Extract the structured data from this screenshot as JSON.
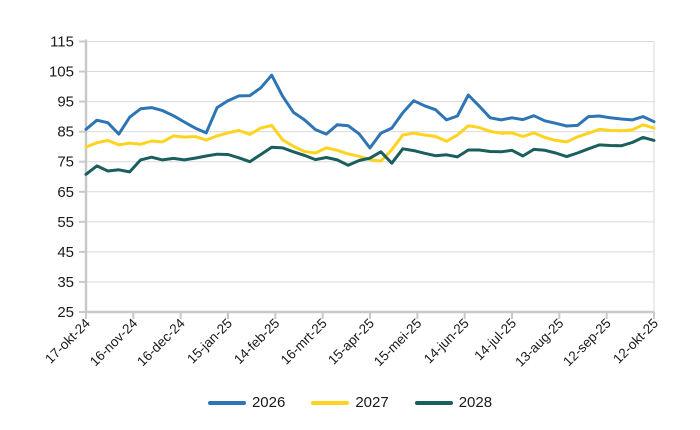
{
  "chart_data": {
    "type": "line",
    "title": "",
    "xlabel": "",
    "ylabel": "",
    "ylim": [
      25,
      115
    ],
    "y_ticks": [
      25,
      35,
      45,
      55,
      65,
      75,
      85,
      95,
      105,
      115
    ],
    "x_tick_labels": [
      "17-okt-24",
      "16-nov-24",
      "16-dec-24",
      "15-jan-25",
      "14-feb-25",
      "16-mrt-25",
      "15-apr-25",
      "15-mei-25",
      "14-jun-25",
      "14-jul-25",
      "13-aug-25",
      "12-sep-25",
      "12-okt-25"
    ],
    "grid": "horizontal",
    "legend_position": "bottom",
    "sampling": "weekly estimates between 17-okt-24 and 12-okt-25",
    "series": [
      {
        "name": "2026",
        "color": "#2E75B6",
        "values": [
          85.8,
          88.8,
          88.0,
          84.2,
          89.8,
          92.6,
          93.0,
          92.0,
          90.3,
          88.2,
          86.2,
          84.6,
          93.0,
          95.3,
          96.9,
          97.0,
          99.6,
          103.8,
          96.8,
          91.4,
          88.9,
          85.7,
          84.2,
          87.3,
          87.0,
          84.3,
          79.6,
          84.5,
          86.2,
          91.3,
          95.3,
          93.6,
          92.3,
          88.9,
          90.2,
          97.2,
          93.5,
          89.6,
          88.9,
          89.6,
          89.0,
          90.3,
          88.6,
          87.8,
          86.9,
          87.1,
          90.0,
          90.2,
          89.6,
          89.2,
          88.9,
          90.0,
          88.3
        ]
      },
      {
        "name": "2027",
        "color": "#FFD320",
        "values": [
          79.9,
          81.3,
          82.1,
          80.6,
          81.2,
          80.8,
          81.9,
          81.6,
          83.6,
          83.2,
          83.4,
          82.2,
          83.6,
          84.6,
          85.4,
          84.1,
          86.2,
          87.1,
          82.3,
          80.1,
          78.4,
          77.9,
          79.6,
          78.8,
          77.6,
          76.8,
          75.7,
          75.2,
          79.0,
          83.9,
          84.5,
          83.9,
          83.4,
          81.8,
          83.9,
          87.0,
          86.4,
          85.1,
          84.5,
          84.6,
          83.4,
          84.6,
          83.1,
          82.1,
          81.6,
          83.3,
          84.5,
          85.8,
          85.4,
          85.3,
          85.6,
          87.3,
          86.2
        ]
      },
      {
        "name": "2028",
        "color": "#1A5F5E",
        "values": [
          70.8,
          73.6,
          71.9,
          72.3,
          71.6,
          75.6,
          76.5,
          75.6,
          76.1,
          75.6,
          76.2,
          76.9,
          77.5,
          77.4,
          76.3,
          75.0,
          77.4,
          79.8,
          79.6,
          78.3,
          77.1,
          75.7,
          76.4,
          75.6,
          73.8,
          75.4,
          76.2,
          78.3,
          74.5,
          79.3,
          78.7,
          77.8,
          77.0,
          77.3,
          76.6,
          78.9,
          78.9,
          78.4,
          78.3,
          78.8,
          76.9,
          79.1,
          78.8,
          77.9,
          76.7,
          77.9,
          79.3,
          80.6,
          80.4,
          80.3,
          81.4,
          83.1,
          82.1
        ]
      }
    ]
  },
  "style": {
    "gridline_color": "#D9D9D9",
    "axis_color": "#C9C9C9",
    "text_color": "#1a1a1a",
    "background": "#FFFFFF",
    "line_width": 3
  }
}
